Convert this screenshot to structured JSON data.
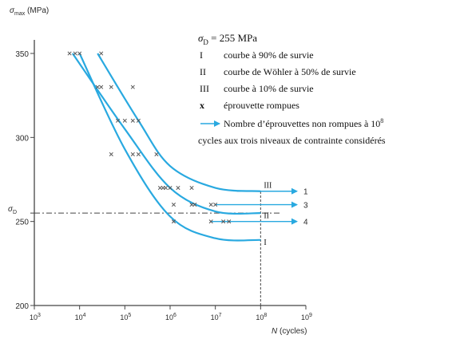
{
  "colors": {
    "curve": "#29a9e0",
    "axis": "#444444",
    "marker": "#555555",
    "dashed": "#444444"
  },
  "chart_data": {
    "type": "line",
    "ylabel": "σ",
    "ylabel_sub": "max",
    "ylabel_unit": "(MPa)",
    "xlabel_var": "N",
    "xlabel_unit": "(cycles)",
    "xscale": "log10",
    "xlim": [
      1000,
      1000000000
    ],
    "ylim": [
      200,
      360
    ],
    "x_tick_exponents": [
      3,
      4,
      5,
      6,
      7,
      8,
      9
    ],
    "x_tick_base": "10",
    "y_ticks": [
      "200",
      "250",
      "300",
      "350"
    ],
    "sigma_d_label": "σ",
    "sigma_d_sub": "D",
    "sigma_d_value": 255,
    "series": [
      {
        "id": "I",
        "points": [
          [
            10000,
            350
          ],
          [
            100000,
            293
          ],
          [
            1000000,
            253
          ],
          [
            10000000,
            240
          ],
          [
            100000000,
            239
          ]
        ]
      },
      {
        "id": "II",
        "points": [
          [
            7000,
            350
          ],
          [
            100000,
            305
          ],
          [
            1000000,
            270
          ],
          [
            10000000,
            256
          ],
          [
            100000000,
            255
          ]
        ]
      },
      {
        "id": "III",
        "points": [
          [
            25000,
            350
          ],
          [
            200000,
            310
          ],
          [
            1000000,
            283
          ],
          [
            10000000,
            270
          ],
          [
            100000000,
            268
          ]
        ]
      }
    ],
    "curve_labels": [
      {
        "text": "III",
        "x": 100000000,
        "y": 270
      },
      {
        "text": "II",
        "x": 100000000,
        "y": 252
      },
      {
        "text": "I",
        "x": 100000000,
        "y": 236
      }
    ],
    "runouts": [
      {
        "label": "1",
        "start": [
          30000000,
          268
        ],
        "end": [
          1000000000,
          268
        ]
      },
      {
        "label": "3",
        "start": [
          10000000,
          260
        ],
        "end": [
          1000000000,
          260
        ]
      },
      {
        "label": "4",
        "start": [
          8000000,
          250
        ],
        "end": [
          1000000000,
          250
        ]
      }
    ],
    "specimens": [
      [
        6000,
        350
      ],
      [
        8000,
        350
      ],
      [
        10000,
        350
      ],
      [
        30000,
        350
      ],
      [
        25000,
        330
      ],
      [
        30000,
        330
      ],
      [
        50000,
        330
      ],
      [
        150000,
        330
      ],
      [
        70000,
        310
      ],
      [
        100000,
        310
      ],
      [
        150000,
        310
      ],
      [
        200000,
        310
      ],
      [
        50000,
        290
      ],
      [
        150000,
        290
      ],
      [
        200000,
        290
      ],
      [
        500000,
        290
      ],
      [
        600000,
        270
      ],
      [
        700000,
        270
      ],
      [
        800000,
        270
      ],
      [
        1000000,
        270
      ],
      [
        1500000,
        270
      ],
      [
        3000000,
        270
      ],
      [
        1200000,
        260
      ],
      [
        3000000,
        260
      ],
      [
        3500000,
        260
      ],
      [
        8000000,
        260
      ],
      [
        10000000,
        260
      ],
      [
        1200000,
        250
      ],
      [
        8000000,
        250
      ],
      [
        15000000,
        250
      ],
      [
        20000000,
        250
      ]
    ],
    "legend": {
      "sigma_symbol": "σ",
      "sigma_sub": "D",
      "sigma_value": " = 255 MPa",
      "items": [
        {
          "key": "I",
          "text": "courbe à 90% de survie"
        },
        {
          "key": "II",
          "text": "courbe de Wöhler à 50% de survie"
        },
        {
          "key": "III",
          "text": "courbe à 10% de survie"
        },
        {
          "key": "x",
          "text": "éprouvette rompues"
        }
      ],
      "arrow_text_prefix": "Nombre d’éprouvettes non rompues à 10",
      "arrow_text_exp": "8",
      "arrow_text_line2": "cycles aux trois niveaux de contrainte considérés"
    }
  }
}
